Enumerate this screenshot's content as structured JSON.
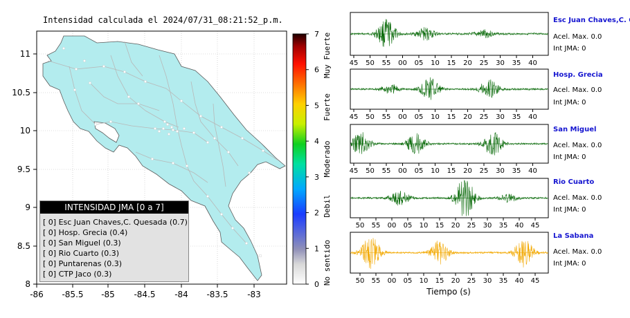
{
  "map": {
    "title": "Intensidad calculada el 2024/07/31_08:21:52_p.m.",
    "x_ticks": [
      "-86",
      "-85.5",
      "-85",
      "-84.5",
      "-84",
      "-83.5",
      "-83"
    ],
    "y_ticks": [
      "11",
      "10.5",
      "10",
      "9.5",
      "9",
      "8.5",
      "8"
    ],
    "land_color": "#b3ecee"
  },
  "colorbar": {
    "ticks": [
      "0",
      "1",
      "2",
      "3",
      "4",
      "5",
      "6",
      "7"
    ],
    "labels": [
      "No sentido",
      "Debil",
      "Moderado",
      "Fuerte",
      "Muy Fuerte"
    ]
  },
  "legend": {
    "title": "INTENSIDAD JMA [0 a 7]",
    "items": [
      "[ 0]  Esc Juan Chaves,C. Quesada (0.7)",
      "[ 0]  Hosp. Grecia (0.4)",
      "[ 0]  San Miguel (0.3)",
      "[ 0]  Rio Cuarto (0.3)",
      "[ 0]  Puntarenas (0.3)",
      "[ 0]  CTP Jaco (0.3)"
    ]
  },
  "stations": [
    {
      "name": "Esc Juan Chaves,C. Qu",
      "accel": "Acel. Max. 0.0",
      "int": "Int JMA: 0",
      "ticks": [
        "45",
        "50",
        "55",
        "00",
        "05",
        "10",
        "15",
        "20",
        "25",
        "30",
        "35",
        "40"
      ],
      "color": "#0b6b0b"
    },
    {
      "name": "Hosp. Grecia",
      "accel": "Acel. Max. 0.0",
      "int": "Int JMA: 0",
      "ticks": [
        "45",
        "50",
        "55",
        "00",
        "05",
        "10",
        "15",
        "20",
        "25",
        "30",
        "35",
        "40"
      ],
      "color": "#0b6b0b"
    },
    {
      "name": "San Miguel",
      "accel": "Acel. Max. 0.0",
      "int": "Int JMA: 0",
      "ticks": [
        "45",
        "50",
        "55",
        "00",
        "05",
        "10",
        "15",
        "20",
        "25",
        "30",
        "35",
        "40"
      ],
      "color": "#0b6b0b"
    },
    {
      "name": "Rio Cuarto",
      "accel": "Acel. Max. 0.0",
      "int": "Int JMA: 0",
      "ticks": [
        "50",
        "55",
        "00",
        "05",
        "10",
        "15",
        "20",
        "25",
        "30",
        "35",
        "40",
        "45"
      ],
      "color": "#0b6b0b"
    },
    {
      "name": "La Sabana",
      "accel": "Acel. Max. 0.0",
      "int": "Int JMA: 0",
      "ticks": [
        "50",
        "55",
        "00",
        "05",
        "10",
        "15",
        "20",
        "25",
        "30",
        "35",
        "40",
        "45"
      ],
      "color": "#f2a800"
    }
  ],
  "time_axis_label": "Tiempo (s)",
  "chart_data": {
    "type": "map",
    "title": "Intensidad calculada el 2024/07/31_08:21:52_p.m.",
    "xlim": [
      -86,
      -82.6
    ],
    "ylim": [
      8,
      11.3
    ],
    "colorbar_range": [
      0,
      7
    ],
    "station_intensity": [
      {
        "station": "Esc Juan Chaves,C. Quesada",
        "value": 0.7
      },
      {
        "station": "Hosp. Grecia",
        "value": 0.4
      },
      {
        "station": "San Miguel",
        "value": 0.3
      },
      {
        "station": "Rio Cuarto",
        "value": 0.3
      },
      {
        "station": "Puntarenas",
        "value": 0.3
      },
      {
        "station": "CTP Jaco",
        "value": 0.3
      }
    ]
  }
}
